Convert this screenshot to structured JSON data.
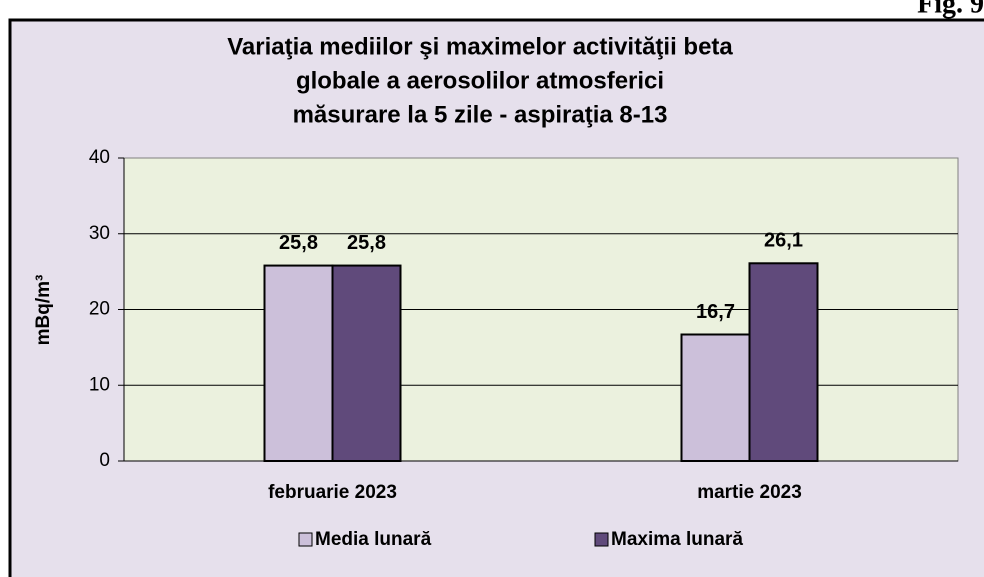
{
  "chart_data": {
    "type": "bar",
    "figure_label": "Fig. 9",
    "title": [
      "Variaţia mediilor şi maximelor  activităţii beta",
      "globale a aerosolilor atmosferici",
      "măsurare la 5 zile - aspiraţia 8-13"
    ],
    "y_label": "mBq/m³",
    "categories": [
      "februarie 2023",
      "martie 2023"
    ],
    "series": [
      {
        "name": "Media lunară",
        "color": "#ccc0da",
        "values": [
          25.8,
          16.7
        ],
        "value_labels": [
          "25,8",
          "16,7"
        ]
      },
      {
        "name": "Maxima lunară",
        "color": "#604a7b",
        "values": [
          25.8,
          26.1
        ],
        "value_labels": [
          "25,8",
          "26,1"
        ]
      }
    ],
    "ylim": [
      0,
      40
    ],
    "yticks": [
      0,
      10,
      20,
      30,
      40
    ],
    "grid": true,
    "legend": "bottom"
  }
}
